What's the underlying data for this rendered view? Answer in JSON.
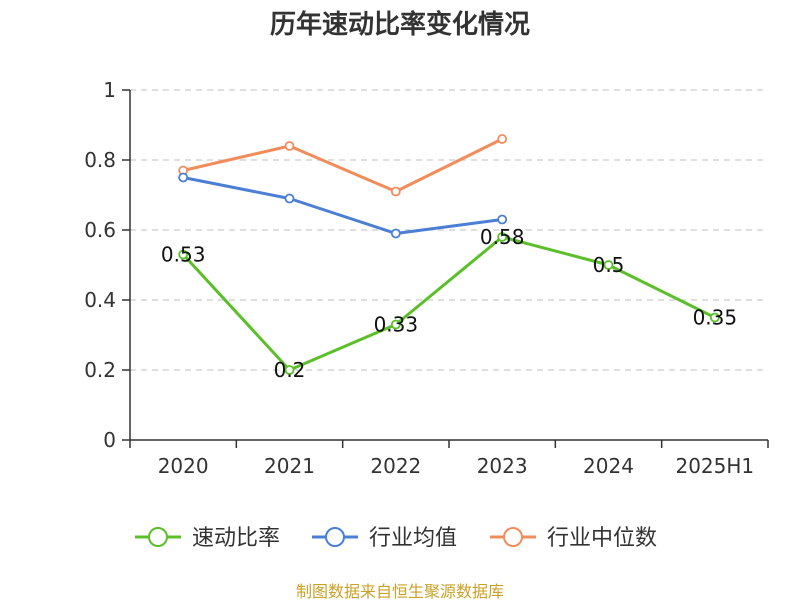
{
  "chart_data": {
    "type": "line",
    "title": "历年速动比率变化情况",
    "categories": [
      "2020",
      "2021",
      "2022",
      "2023",
      "2024",
      "2025H1"
    ],
    "ylim": [
      0,
      1
    ],
    "yticks": [
      "0",
      "0.2",
      "0.4",
      "0.6",
      "0.8",
      "1"
    ],
    "grid": true,
    "legend_position": "bottom",
    "series": [
      {
        "name": "速动比率",
        "color": "#5bbf2a",
        "values": [
          0.53,
          0.2,
          0.33,
          0.58,
          0.5,
          0.35
        ],
        "labels": [
          "0.53",
          "0.2",
          "0.33",
          "0.58",
          "0.5",
          "0.35"
        ]
      },
      {
        "name": "行业均值",
        "color": "#4a7fd4",
        "values": [
          0.75,
          0.69,
          0.59,
          0.63,
          null,
          null
        ]
      },
      {
        "name": "行业中位数",
        "color": "#f28c5a",
        "values": [
          0.77,
          0.84,
          0.71,
          0.86,
          null,
          null
        ]
      }
    ]
  },
  "source": "制图数据来自恒生聚源数据库"
}
